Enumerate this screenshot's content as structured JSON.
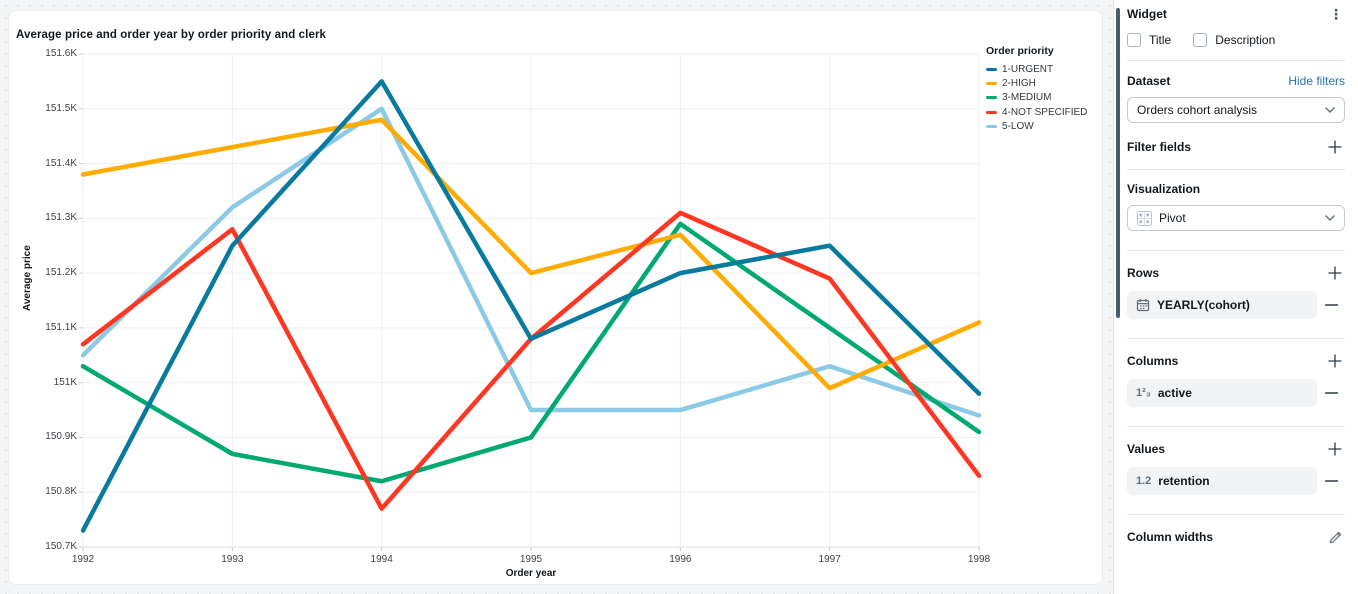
{
  "chart_data": {
    "type": "line",
    "title": "Average price and order year by order priority and clerk",
    "xlabel": "Order year",
    "ylabel": "Average price",
    "legend_title": "Order priority",
    "legend_position": "right",
    "grid": true,
    "unit": "K",
    "x": [
      1992,
      1993,
      1994,
      1995,
      1996,
      1997,
      1998
    ],
    "ylim": [
      150.7,
      151.6
    ],
    "yticks": {
      "values": [
        151.6,
        151.5,
        151.4,
        151.3,
        151.2,
        151.1,
        151.0,
        150.9,
        150.8,
        150.7
      ],
      "labels": [
        "151.6K",
        "151.5K",
        "151.4K",
        "151.3K",
        "151.2K",
        "151.1K",
        "151K",
        "150.9K",
        "150.8K",
        "150.7K"
      ]
    },
    "series": [
      {
        "name": "1-URGENT",
        "color": "#077A9D",
        "values": [
          150.73,
          151.25,
          151.55,
          151.08,
          151.2,
          151.25,
          150.98
        ]
      },
      {
        "name": "2-HIGH",
        "color": "#FFAB00",
        "values": [
          151.38,
          151.43,
          151.48,
          151.2,
          151.27,
          150.99,
          151.11
        ]
      },
      {
        "name": "3-MEDIUM",
        "color": "#00A972",
        "values": [
          151.03,
          150.87,
          150.82,
          150.9,
          151.29,
          151.1,
          150.91
        ]
      },
      {
        "name": "4-NOT SPECIFIED",
        "color": "#FF3621",
        "values": [
          151.07,
          151.28,
          150.77,
          151.08,
          151.31,
          151.19,
          150.83
        ]
      },
      {
        "name": "5-LOW",
        "color": "#8BCAE7",
        "values": [
          151.05,
          151.32,
          151.5,
          150.95,
          150.95,
          151.03,
          150.94
        ]
      }
    ],
    "draw_order": [
      4,
      2,
      1,
      3,
      0
    ]
  },
  "sidebar": {
    "widget": {
      "title": "Widget",
      "menu_icon": "kebab-menu",
      "checkboxes": [
        {
          "label": "Title",
          "checked": false
        },
        {
          "label": "Description",
          "checked": false
        }
      ]
    },
    "dataset": {
      "label": "Dataset",
      "link": "Hide filters",
      "selected": "Orders cohort analysis"
    },
    "filter_fields": {
      "label": "Filter fields"
    },
    "visualization": {
      "label": "Visualization",
      "selected": "Pivot"
    },
    "rows": {
      "label": "Rows",
      "field": "YEARLY(cohort)",
      "field_icon": "calendar"
    },
    "columns": {
      "label": "Columns",
      "field": "active",
      "icon_glyph": "1²₃"
    },
    "values": {
      "label": "Values",
      "field": "retention",
      "icon_glyph": "1.2"
    },
    "column_widths": {
      "label": "Column widths"
    }
  },
  "colors": {
    "link_blue": "#2272B4",
    "panel_bar": "#44606E",
    "gridline": "#EEF0F2",
    "axis_line": "#D9DDE0",
    "tick_text": "#3D4247"
  }
}
